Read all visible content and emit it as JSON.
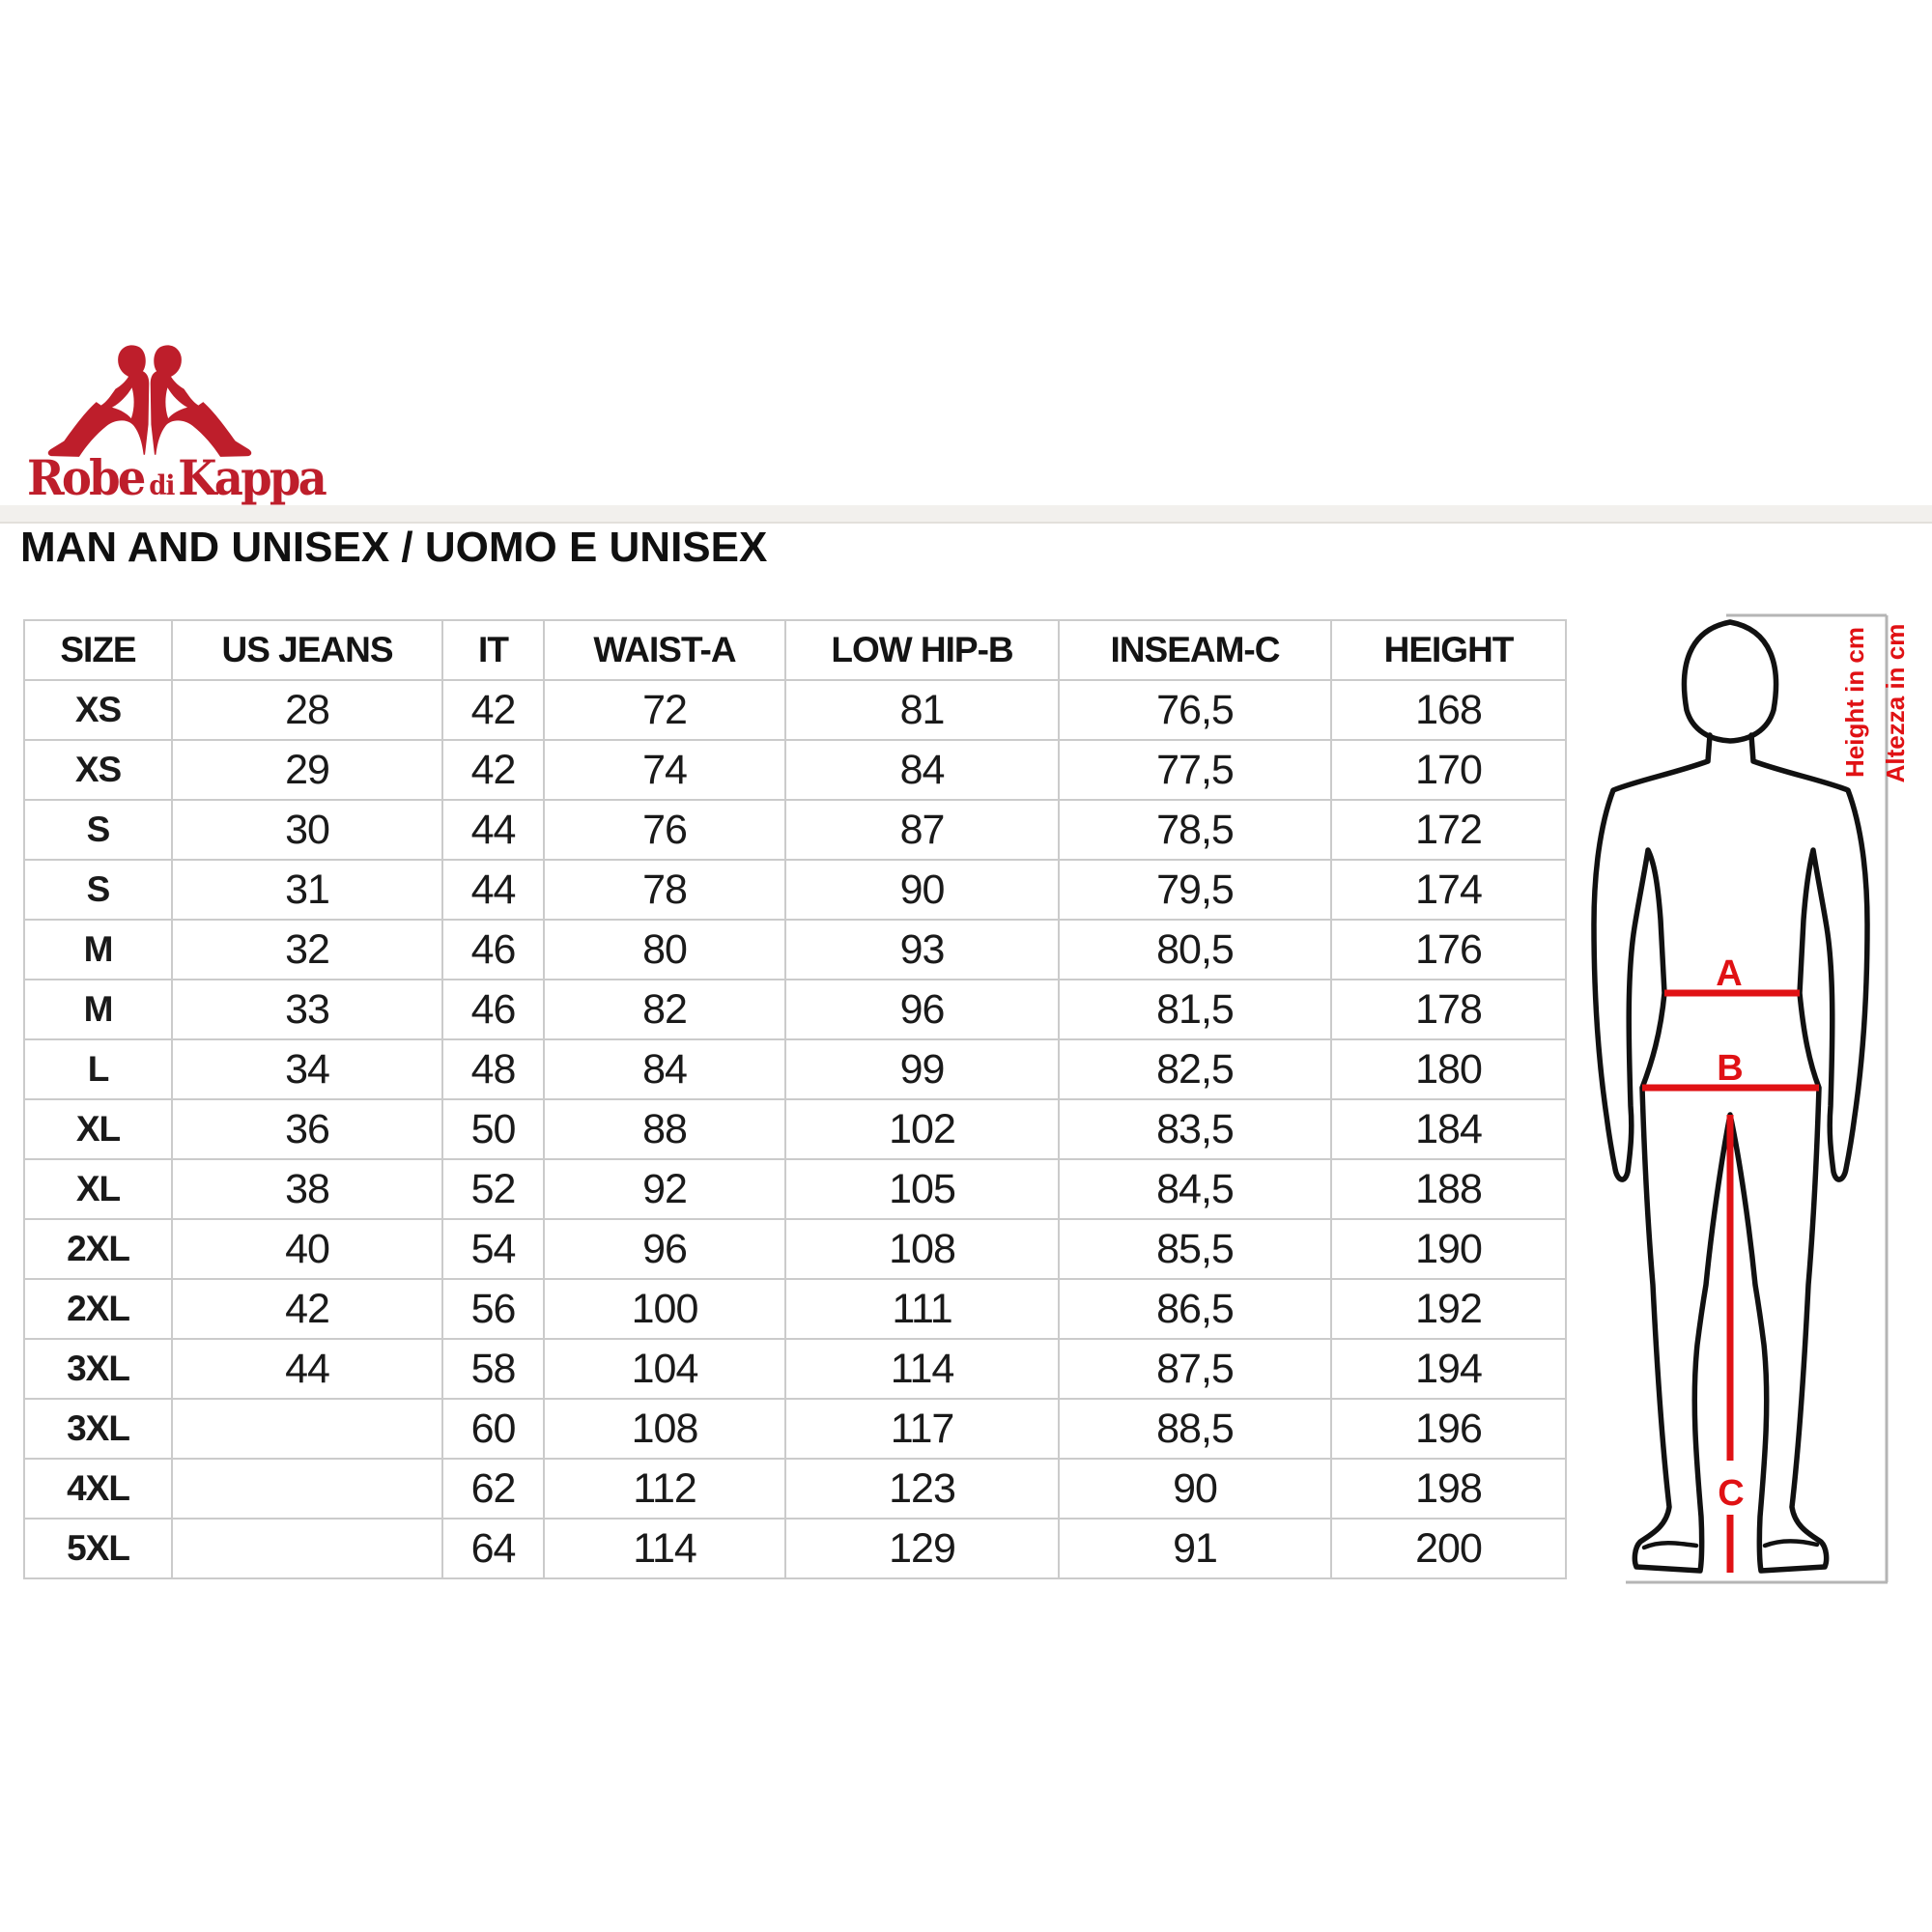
{
  "logo": {
    "word1": "Robe",
    "word2": "di",
    "word3": "Kappa"
  },
  "heading": "MAN AND UNISEX / UOMO E UNISEX",
  "table": {
    "columns": [
      "SIZE",
      "US JEANS",
      "IT",
      "WAIST-A",
      "LOW HIP-B",
      "INSEAM-C",
      "HEIGHT"
    ],
    "rows": [
      [
        "XS",
        "28",
        "42",
        "72",
        "81",
        "76,5",
        "168"
      ],
      [
        "XS",
        "29",
        "42",
        "74",
        "84",
        "77,5",
        "170"
      ],
      [
        "S",
        "30",
        "44",
        "76",
        "87",
        "78,5",
        "172"
      ],
      [
        "S",
        "31",
        "44",
        "78",
        "90",
        "79,5",
        "174"
      ],
      [
        "M",
        "32",
        "46",
        "80",
        "93",
        "80,5",
        "176"
      ],
      [
        "M",
        "33",
        "46",
        "82",
        "96",
        "81,5",
        "178"
      ],
      [
        "L",
        "34",
        "48",
        "84",
        "99",
        "82,5",
        "180"
      ],
      [
        "XL",
        "36",
        "50",
        "88",
        "102",
        "83,5",
        "184"
      ],
      [
        "XL",
        "38",
        "52",
        "92",
        "105",
        "84,5",
        "188"
      ],
      [
        "2XL",
        "40",
        "54",
        "96",
        "108",
        "85,5",
        "190"
      ],
      [
        "2XL",
        "42",
        "56",
        "100",
        "111",
        "86,5",
        "192"
      ],
      [
        "3XL",
        "44",
        "58",
        "104",
        "114",
        "87,5",
        "194"
      ],
      [
        "3XL",
        "",
        "60",
        "108",
        "117",
        "88,5",
        "196"
      ],
      [
        "4XL",
        "",
        "62",
        "112",
        "123",
        "90",
        "198"
      ],
      [
        "5XL",
        "",
        "64",
        "114",
        "129",
        "91",
        "200"
      ]
    ]
  },
  "diagram": {
    "height_label_en": "Height in cm",
    "height_label_it": "Altezza in cm",
    "marker_a": "A",
    "marker_b": "B",
    "marker_c": "C"
  },
  "colors": {
    "brand_red": "#BE1E2B",
    "diagram_red": "#E01114",
    "table_border": "#cbcbcb",
    "frame_gray": "#b5b5b5",
    "text": "#161616"
  }
}
